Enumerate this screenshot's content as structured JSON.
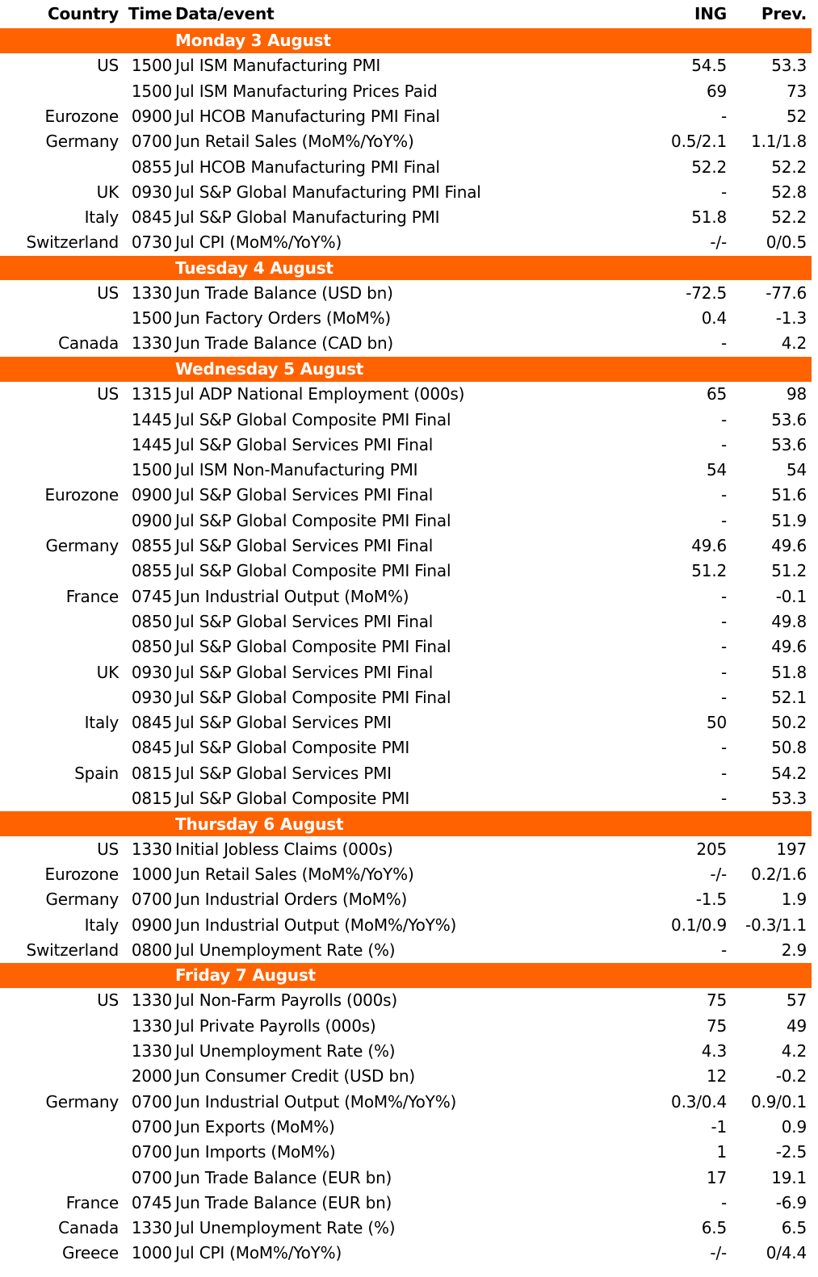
{
  "colors": {
    "accent": "#ff6200",
    "text": "#000000",
    "header_text": "#ffffff"
  },
  "headers": {
    "country": "Country",
    "time": "Time",
    "event": "Data/event",
    "ing": "ING",
    "prev": "Prev."
  },
  "days": [
    {
      "label": "Monday 3 August",
      "rows": [
        {
          "country": "US",
          "time": "1500",
          "event": "Jul ISM Manufacturing PMI",
          "ing": "54.5",
          "prev": "53.3"
        },
        {
          "country": "",
          "time": "1500",
          "event": "Jul ISM Manufacturing Prices Paid",
          "ing": "69",
          "prev": "73"
        },
        {
          "country": "Eurozone",
          "time": "0900",
          "event": "Jul HCOB Manufacturing PMI Final",
          "ing": "-",
          "prev": "52"
        },
        {
          "country": "Germany",
          "time": "0700",
          "event": "Jun Retail Sales (MoM%/YoY%)",
          "ing": "0.5/2.1",
          "prev": "1.1/1.8"
        },
        {
          "country": "",
          "time": "0855",
          "event": "Jul HCOB Manufacturing PMI Final",
          "ing": "52.2",
          "prev": "52.2"
        },
        {
          "country": "UK",
          "time": "0930",
          "event": "Jul S&P Global Manufacturing PMI Final",
          "ing": "-",
          "prev": "52.8"
        },
        {
          "country": "Italy",
          "time": "0845",
          "event": "Jul S&P Global Manufacturing PMI",
          "ing": "51.8",
          "prev": "52.2"
        },
        {
          "country": "Switzerland",
          "time": "0730",
          "event": "Jul CPI (MoM%/YoY%)",
          "ing": "-/-",
          "prev": "0/0.5"
        }
      ]
    },
    {
      "label": "Tuesday 4 August",
      "rows": [
        {
          "country": "US",
          "time": "1330",
          "event": "Jun Trade Balance (USD bn)",
          "ing": "-72.5",
          "prev": "-77.6"
        },
        {
          "country": "",
          "time": "1500",
          "event": "Jun Factory Orders (MoM%)",
          "ing": "0.4",
          "prev": "-1.3"
        },
        {
          "country": "Canada",
          "time": "1330",
          "event": "Jun Trade Balance (CAD bn)",
          "ing": "-",
          "prev": "4.2"
        }
      ]
    },
    {
      "label": "Wednesday 5 August",
      "rows": [
        {
          "country": "US",
          "time": "1315",
          "event": "Jul ADP National Employment (000s)",
          "ing": "65",
          "prev": "98"
        },
        {
          "country": "",
          "time": "1445",
          "event": "Jul S&P Global Composite PMI Final",
          "ing": "-",
          "prev": "53.6"
        },
        {
          "country": "",
          "time": "1445",
          "event": "Jul S&P Global Services PMI Final",
          "ing": "-",
          "prev": "53.6"
        },
        {
          "country": "",
          "time": "1500",
          "event": "Jul ISM Non-Manufacturing PMI",
          "ing": "54",
          "prev": "54"
        },
        {
          "country": "Eurozone",
          "time": "0900",
          "event": "Jul S&P Global Services PMI Final",
          "ing": "-",
          "prev": "51.6"
        },
        {
          "country": "",
          "time": "0900",
          "event": "Jul S&P Global Composite PMI Final",
          "ing": "-",
          "prev": "51.9"
        },
        {
          "country": "Germany",
          "time": "0855",
          "event": "Jul S&P Global Services PMI Final",
          "ing": "49.6",
          "prev": "49.6"
        },
        {
          "country": "",
          "time": "0855",
          "event": "Jul S&P Global Composite PMI Final",
          "ing": "51.2",
          "prev": "51.2"
        },
        {
          "country": "France",
          "time": "0745",
          "event": "Jun Industrial Output (MoM%)",
          "ing": "-",
          "prev": "-0.1"
        },
        {
          "country": "",
          "time": "0850",
          "event": "Jul S&P Global Services PMI Final",
          "ing": "-",
          "prev": "49.8"
        },
        {
          "country": "",
          "time": "0850",
          "event": "Jul S&P Global Composite PMI Final",
          "ing": "-",
          "prev": "49.6"
        },
        {
          "country": "UK",
          "time": "0930",
          "event": "Jul S&P Global Services PMI Final",
          "ing": "-",
          "prev": "51.8"
        },
        {
          "country": "",
          "time": "0930",
          "event": "Jul S&P Global Composite PMI Final",
          "ing": "-",
          "prev": "52.1"
        },
        {
          "country": "Italy",
          "time": "0845",
          "event": "Jul S&P Global Services PMI",
          "ing": "50",
          "prev": "50.2"
        },
        {
          "country": "",
          "time": "0845",
          "event": "Jul S&P Global Composite PMI",
          "ing": "-",
          "prev": "50.8"
        },
        {
          "country": "Spain",
          "time": "0815",
          "event": "Jul S&P Global Services PMI",
          "ing": "-",
          "prev": "54.2"
        },
        {
          "country": "",
          "time": "0815",
          "event": "Jul S&P Global Composite PMI",
          "ing": "-",
          "prev": "53.3"
        }
      ]
    },
    {
      "label": "Thursday 6 August",
      "rows": [
        {
          "country": "US",
          "time": "1330",
          "event": "Initial Jobless Claims (000s)",
          "ing": "205",
          "prev": "197"
        },
        {
          "country": "Eurozone",
          "time": "1000",
          "event": "Jun Retail Sales (MoM%/YoY%)",
          "ing": "-/-",
          "prev": "0.2/1.6"
        },
        {
          "country": "Germany",
          "time": "0700",
          "event": "Jun Industrial Orders (MoM%)",
          "ing": "-1.5",
          "prev": "1.9"
        },
        {
          "country": "Italy",
          "time": "0900",
          "event": "Jun Industrial Output (MoM%/YoY%)",
          "ing": "0.1/0.9",
          "prev": "-0.3/1.1"
        },
        {
          "country": "Switzerland",
          "time": "0800",
          "event": "Jul Unemployment Rate (%)",
          "ing": "-",
          "prev": "2.9"
        }
      ]
    },
    {
      "label": "Friday 7 August",
      "rows": [
        {
          "country": "US",
          "time": "1330",
          "event": "Jul Non-Farm Payrolls (000s)",
          "ing": "75",
          "prev": "57"
        },
        {
          "country": "",
          "time": "1330",
          "event": "Jul Private Payrolls (000s)",
          "ing": "75",
          "prev": "49"
        },
        {
          "country": "",
          "time": "1330",
          "event": "Jul Unemployment Rate (%)",
          "ing": "4.3",
          "prev": "4.2"
        },
        {
          "country": "",
          "time": "2000",
          "event": "Jun Consumer Credit (USD bn)",
          "ing": "12",
          "prev": "-0.2"
        },
        {
          "country": "Germany",
          "time": "0700",
          "event": "Jun Industrial Output (MoM%/YoY%)",
          "ing": "0.3/0.4",
          "prev": "0.9/0.1"
        },
        {
          "country": "",
          "time": "0700",
          "event": "Jun Exports (MoM%)",
          "ing": "-1",
          "prev": "0.9"
        },
        {
          "country": "",
          "time": "0700",
          "event": "Jun Imports (MoM%)",
          "ing": "1",
          "prev": "-2.5"
        },
        {
          "country": "",
          "time": "0700",
          "event": "Jun Trade Balance (EUR bn)",
          "ing": "17",
          "prev": "19.1"
        },
        {
          "country": "France",
          "time": "0745",
          "event": "Jun Trade Balance (EUR bn)",
          "ing": "-",
          "prev": "-6.9"
        },
        {
          "country": "Canada",
          "time": "1330",
          "event": "Jul Unemployment Rate (%)",
          "ing": "6.5",
          "prev": "6.5"
        },
        {
          "country": "Greece",
          "time": "1000",
          "event": "Jul CPI (MoM%/YoY%)",
          "ing": "-/-",
          "prev": "0/4.4"
        }
      ]
    }
  ]
}
